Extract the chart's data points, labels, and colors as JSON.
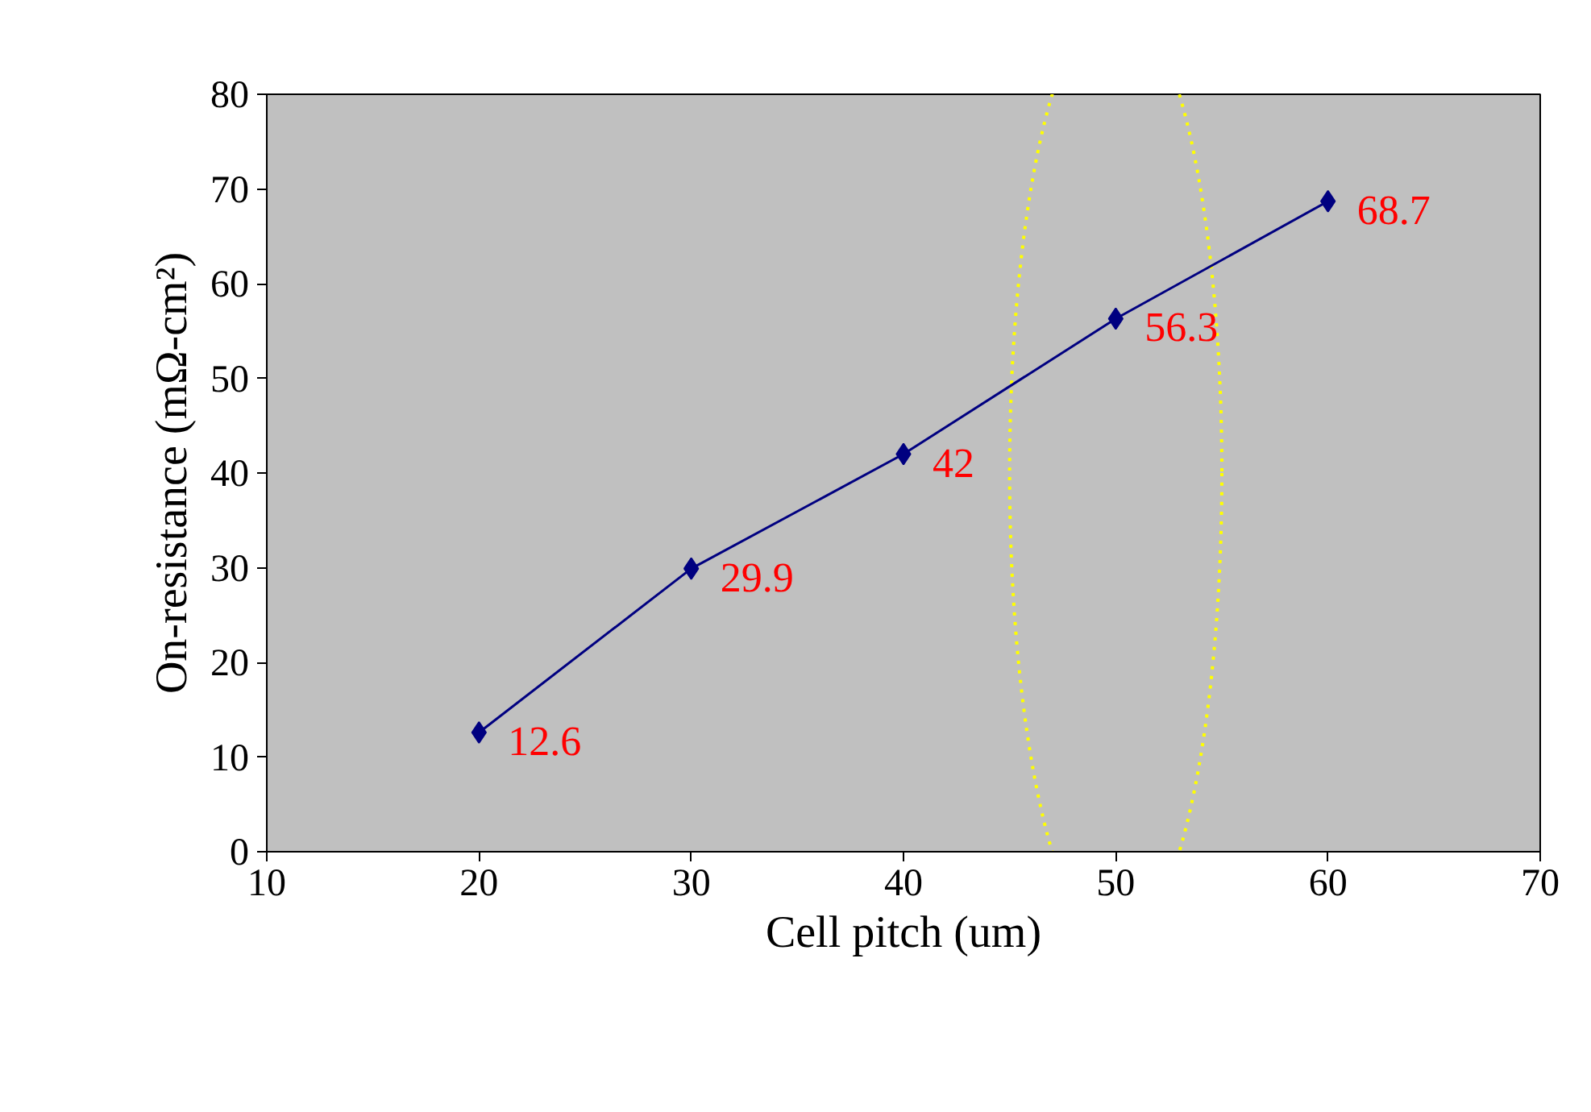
{
  "chart_data": {
    "type": "line",
    "xlabel": "Cell pitch (um)",
    "ylabel": "On-resistance (mΩ-cm²)",
    "x": [
      20,
      30,
      40,
      50,
      60
    ],
    "series": [
      {
        "color": "#000080",
        "values": [
          12.6,
          29.9,
          42,
          56.3,
          68.7
        ]
      }
    ],
    "data_labels": true,
    "marker": "diamond",
    "line_style": "solid",
    "xlim": [
      10,
      70
    ],
    "xticks": [
      10,
      20,
      30,
      40,
      50,
      60,
      70
    ],
    "ylim": [
      0,
      80
    ],
    "yticks": [
      0,
      10,
      20,
      30,
      40,
      50,
      60,
      70,
      80
    ]
  }
}
